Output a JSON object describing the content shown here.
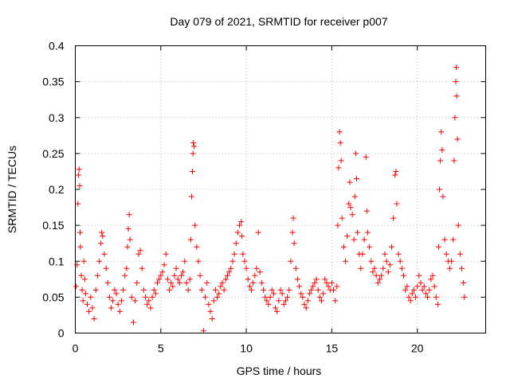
{
  "chart_data": {
    "type": "scatter",
    "title": "Day 079 of 2021, SRMTID for receiver p007",
    "xlabel": "GPS time / hours",
    "ylabel": "SRMTID / TECUs",
    "xlim": [
      0,
      24
    ],
    "ylim": [
      0,
      0.4
    ],
    "x_ticks": [
      0,
      5,
      10,
      15,
      20
    ],
    "x_tick_labels": [
      "0",
      "5",
      "10",
      "15",
      "20"
    ],
    "y_ticks": [
      0,
      0.05,
      0.1,
      0.15,
      0.2,
      0.25,
      0.3,
      0.35,
      0.4
    ],
    "y_tick_labels": [
      "0",
      "0.05",
      "0.1",
      "0.15",
      "0.2",
      "0.25",
      "0.3",
      "0.35",
      "0.4"
    ],
    "grid": true,
    "marker": "plus",
    "marker_color": "#ff0000",
    "series_envelope_note_hours": [
      0,
      22.75
    ],
    "series": [
      {
        "name": "SRMTID",
        "points": [
          [
            0.05,
            0.065
          ],
          [
            0.1,
            0.095
          ],
          [
            0.15,
            0.18
          ],
          [
            0.18,
            0.22
          ],
          [
            0.22,
            0.228
          ],
          [
            0.25,
            0.205
          ],
          [
            0.28,
            0.14
          ],
          [
            0.3,
            0.12
          ],
          [
            0.35,
            0.08
          ],
          [
            0.4,
            0.06
          ],
          [
            0.45,
            0.045
          ],
          [
            0.5,
            0.1
          ],
          [
            0.55,
            0.075
          ],
          [
            0.6,
            0.055
          ],
          [
            0.7,
            0.04
          ],
          [
            0.8,
            0.03
          ],
          [
            0.9,
            0.05
          ],
          [
            1.0,
            0.035
          ],
          [
            1.1,
            0.02
          ],
          [
            1.2,
            0.06
          ],
          [
            1.3,
            0.08
          ],
          [
            1.4,
            0.1
          ],
          [
            1.5,
            0.125
          ],
          [
            1.55,
            0.14
          ],
          [
            1.6,
            0.135
          ],
          [
            1.7,
            0.11
          ],
          [
            1.8,
            0.09
          ],
          [
            1.9,
            0.07
          ],
          [
            2.0,
            0.05
          ],
          [
            2.1,
            0.035
          ],
          [
            2.2,
            0.045
          ],
          [
            2.3,
            0.06
          ],
          [
            2.4,
            0.055
          ],
          [
            2.5,
            0.04
          ],
          [
            2.6,
            0.03
          ],
          [
            2.7,
            0.045
          ],
          [
            2.8,
            0.06
          ],
          [
            2.9,
            0.08
          ],
          [
            3.0,
            0.09
          ],
          [
            3.05,
            0.12
          ],
          [
            3.1,
            0.145
          ],
          [
            3.15,
            0.165
          ],
          [
            3.2,
            0.13
          ],
          [
            3.3,
            0.05
          ],
          [
            3.4,
            0.015
          ],
          [
            3.5,
            0.045
          ],
          [
            3.6,
            0.07
          ],
          [
            3.7,
            0.11
          ],
          [
            3.8,
            0.115
          ],
          [
            3.9,
            0.09
          ],
          [
            4.0,
            0.06
          ],
          [
            4.1,
            0.05
          ],
          [
            4.2,
            0.04
          ],
          [
            4.3,
            0.045
          ],
          [
            4.4,
            0.035
          ],
          [
            4.5,
            0.05
          ],
          [
            4.6,
            0.06
          ],
          [
            4.7,
            0.055
          ],
          [
            4.8,
            0.07
          ],
          [
            4.9,
            0.075
          ],
          [
            5.0,
            0.08
          ],
          [
            5.1,
            0.085
          ],
          [
            5.2,
            0.095
          ],
          [
            5.3,
            0.11
          ],
          [
            5.4,
            0.075
          ],
          [
            5.5,
            0.06
          ],
          [
            5.6,
            0.07
          ],
          [
            5.7,
            0.065
          ],
          [
            5.8,
            0.08
          ],
          [
            5.9,
            0.09
          ],
          [
            6.0,
            0.075
          ],
          [
            6.1,
            0.07
          ],
          [
            6.2,
            0.08
          ],
          [
            6.3,
            0.085
          ],
          [
            6.4,
            0.1
          ],
          [
            6.5,
            0.07
          ],
          [
            6.6,
            0.06
          ],
          [
            6.7,
            0.075
          ],
          [
            6.75,
            0.13
          ],
          [
            6.8,
            0.19
          ],
          [
            6.85,
            0.225
          ],
          [
            6.88,
            0.25
          ],
          [
            6.9,
            0.265
          ],
          [
            6.95,
            0.26
          ],
          [
            7.0,
            0.15
          ],
          [
            7.1,
            0.12
          ],
          [
            7.2,
            0.1
          ],
          [
            7.3,
            0.08
          ],
          [
            7.4,
            0.06
          ],
          [
            7.5,
            0.003
          ],
          [
            7.6,
            0.05
          ],
          [
            7.7,
            0.07
          ],
          [
            7.8,
            0.04
          ],
          [
            7.9,
            0.03
          ],
          [
            8.0,
            0.02
          ],
          [
            8.1,
            0.045
          ],
          [
            8.2,
            0.06
          ],
          [
            8.3,
            0.05
          ],
          [
            8.4,
            0.055
          ],
          [
            8.5,
            0.065
          ],
          [
            8.6,
            0.07
          ],
          [
            8.7,
            0.06
          ],
          [
            8.8,
            0.075
          ],
          [
            8.9,
            0.08
          ],
          [
            9.0,
            0.085
          ],
          [
            9.1,
            0.09
          ],
          [
            9.2,
            0.1
          ],
          [
            9.3,
            0.11
          ],
          [
            9.4,
            0.125
          ],
          [
            9.5,
            0.14
          ],
          [
            9.6,
            0.15
          ],
          [
            9.7,
            0.155
          ],
          [
            9.75,
            0.135
          ],
          [
            9.8,
            0.11
          ],
          [
            9.9,
            0.1
          ],
          [
            10.0,
            0.09
          ],
          [
            10.1,
            0.075
          ],
          [
            10.2,
            0.065
          ],
          [
            10.3,
            0.06
          ],
          [
            10.4,
            0.07
          ],
          [
            10.5,
            0.08
          ],
          [
            10.6,
            0.09
          ],
          [
            10.7,
            0.14
          ],
          [
            10.8,
            0.085
          ],
          [
            10.9,
            0.07
          ],
          [
            11.0,
            0.06
          ],
          [
            11.1,
            0.05
          ],
          [
            11.2,
            0.045
          ],
          [
            11.3,
            0.04
          ],
          [
            11.4,
            0.05
          ],
          [
            11.5,
            0.06
          ],
          [
            11.6,
            0.055
          ],
          [
            11.7,
            0.035
          ],
          [
            11.8,
            0.03
          ],
          [
            11.9,
            0.045
          ],
          [
            12.0,
            0.06
          ],
          [
            12.1,
            0.055
          ],
          [
            12.2,
            0.04
          ],
          [
            12.3,
            0.045
          ],
          [
            12.4,
            0.05
          ],
          [
            12.5,
            0.06
          ],
          [
            12.6,
            0.1
          ],
          [
            12.7,
            0.14
          ],
          [
            12.75,
            0.16
          ],
          [
            12.8,
            0.125
          ],
          [
            12.9,
            0.09
          ],
          [
            13.0,
            0.075
          ],
          [
            13.1,
            0.065
          ],
          [
            13.2,
            0.055
          ],
          [
            13.3,
            0.05
          ],
          [
            13.4,
            0.04
          ],
          [
            13.5,
            0.035
          ],
          [
            13.6,
            0.045
          ],
          [
            13.7,
            0.055
          ],
          [
            13.8,
            0.06
          ],
          [
            13.9,
            0.065
          ],
          [
            14.0,
            0.07
          ],
          [
            14.1,
            0.075
          ],
          [
            14.2,
            0.06
          ],
          [
            14.3,
            0.05
          ],
          [
            14.4,
            0.045
          ],
          [
            14.5,
            0.055
          ],
          [
            14.6,
            0.075
          ],
          [
            14.7,
            0.07
          ],
          [
            14.8,
            0.065
          ],
          [
            14.9,
            0.06
          ],
          [
            15.0,
            0.07
          ],
          [
            15.1,
            0.06
          ],
          [
            15.2,
            0.045
          ],
          [
            15.3,
            0.065
          ],
          [
            15.35,
            0.15
          ],
          [
            15.4,
            0.23
          ],
          [
            15.45,
            0.28
          ],
          [
            15.5,
            0.265
          ],
          [
            15.55,
            0.24
          ],
          [
            15.6,
            0.16
          ],
          [
            15.7,
            0.12
          ],
          [
            15.8,
            0.1
          ],
          [
            15.9,
            0.135
          ],
          [
            16.0,
            0.18
          ],
          [
            16.05,
            0.21
          ],
          [
            16.1,
            0.175
          ],
          [
            16.2,
            0.165
          ],
          [
            16.3,
            0.13
          ],
          [
            16.35,
            0.19
          ],
          [
            16.4,
            0.25
          ],
          [
            16.45,
            0.215
          ],
          [
            16.5,
            0.14
          ],
          [
            16.6,
            0.11
          ],
          [
            16.7,
            0.09
          ],
          [
            16.8,
            0.11
          ],
          [
            16.9,
            0.13
          ],
          [
            17.0,
            0.245
          ],
          [
            17.05,
            0.17
          ],
          [
            17.1,
            0.14
          ],
          [
            17.2,
            0.12
          ],
          [
            17.3,
            0.1
          ],
          [
            17.4,
            0.085
          ],
          [
            17.5,
            0.09
          ],
          [
            17.6,
            0.08
          ],
          [
            17.7,
            0.07
          ],
          [
            17.8,
            0.075
          ],
          [
            17.9,
            0.08
          ],
          [
            18.0,
            0.09
          ],
          [
            18.1,
            0.11
          ],
          [
            18.2,
            0.1
          ],
          [
            18.3,
            0.085
          ],
          [
            18.4,
            0.095
          ],
          [
            18.5,
            0.12
          ],
          [
            18.6,
            0.16
          ],
          [
            18.7,
            0.22
          ],
          [
            18.75,
            0.225
          ],
          [
            18.8,
            0.18
          ],
          [
            18.9,
            0.11
          ],
          [
            19.0,
            0.1
          ],
          [
            19.1,
            0.09
          ],
          [
            19.2,
            0.08
          ],
          [
            19.3,
            0.06
          ],
          [
            19.4,
            0.065
          ],
          [
            19.5,
            0.05
          ],
          [
            19.6,
            0.045
          ],
          [
            19.7,
            0.055
          ],
          [
            19.8,
            0.06
          ],
          [
            19.9,
            0.05
          ],
          [
            20.0,
            0.065
          ],
          [
            20.1,
            0.08
          ],
          [
            20.2,
            0.07
          ],
          [
            20.3,
            0.06
          ],
          [
            20.4,
            0.065
          ],
          [
            20.5,
            0.055
          ],
          [
            20.6,
            0.05
          ],
          [
            20.7,
            0.06
          ],
          [
            20.8,
            0.075
          ],
          [
            20.9,
            0.08
          ],
          [
            21.0,
            0.065
          ],
          [
            21.1,
            0.05
          ],
          [
            21.2,
            0.04
          ],
          [
            21.25,
            0.12
          ],
          [
            21.3,
            0.2
          ],
          [
            21.35,
            0.24
          ],
          [
            21.4,
            0.28
          ],
          [
            21.45,
            0.255
          ],
          [
            21.5,
            0.19
          ],
          [
            21.6,
            0.13
          ],
          [
            21.7,
            0.11
          ],
          [
            21.8,
            0.1
          ],
          [
            21.9,
            0.09
          ],
          [
            22.0,
            0.1
          ],
          [
            22.1,
            0.13
          ],
          [
            22.15,
            0.24
          ],
          [
            22.2,
            0.3
          ],
          [
            22.25,
            0.35
          ],
          [
            22.28,
            0.37
          ],
          [
            22.3,
            0.33
          ],
          [
            22.35,
            0.27
          ],
          [
            22.4,
            0.15
          ],
          [
            22.5,
            0.11
          ],
          [
            22.6,
            0.09
          ],
          [
            22.7,
            0.07
          ],
          [
            22.75,
            0.05
          ]
        ]
      }
    ]
  }
}
